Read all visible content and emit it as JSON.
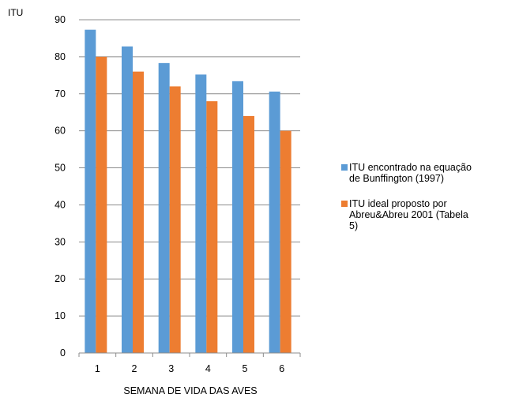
{
  "chart_data": {
    "type": "bar",
    "ylabel": "ITU",
    "xlabel": "SEMANA DE VIDA DAS AVES",
    "categories": [
      "1",
      "2",
      "3",
      "4",
      "5",
      "6"
    ],
    "ylim": [
      0,
      90
    ],
    "yticks": [
      0,
      10,
      20,
      30,
      40,
      50,
      60,
      70,
      80,
      90
    ],
    "grid": true,
    "legend_position": "right",
    "series": [
      {
        "name": "ITU encontrado na equação\nde Bunffington (1997)",
        "color": "#5b9bd5",
        "values": [
          87.3,
          82.8,
          78.3,
          75.2,
          73.4,
          70.6
        ]
      },
      {
        "name": "ITU ideal proposto por\nAbreu&Abreu 2001 (Tabela\n5)",
        "color": "#ed7d31",
        "values": [
          80,
          76,
          72,
          68,
          64,
          60
        ]
      }
    ]
  }
}
